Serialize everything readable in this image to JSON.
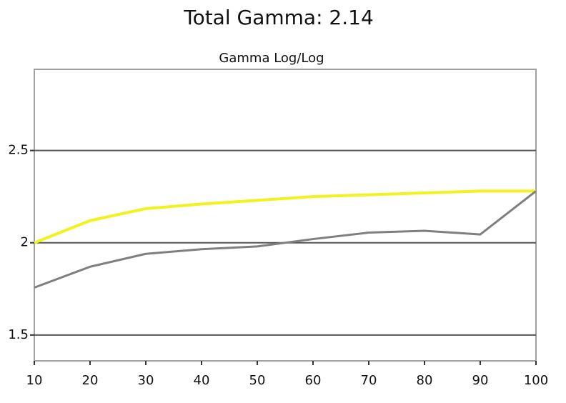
{
  "chart_data": {
    "type": "line",
    "title": "Total Gamma: 2.14",
    "subtitle": "Gamma Log/Log",
    "x": [
      10,
      20,
      30,
      40,
      50,
      60,
      70,
      80,
      90,
      100
    ],
    "series": [
      {
        "color": "#f2f21e",
        "values": [
          2.0,
          2.12,
          2.185,
          2.21,
          2.23,
          2.25,
          2.26,
          2.27,
          2.28,
          2.28
        ]
      },
      {
        "color": "#7f7f7f",
        "values": [
          1.757,
          1.87,
          1.94,
          1.965,
          1.98,
          2.02,
          2.055,
          2.065,
          2.045,
          2.28
        ]
      }
    ],
    "xlim": [
      10,
      100
    ],
    "xticks": [
      10,
      20,
      30,
      40,
      50,
      60,
      70,
      80,
      90,
      100
    ],
    "ylim": [
      1.36,
      2.94
    ],
    "yticks": [
      1.5,
      2,
      2.5
    ],
    "grid": true
  }
}
